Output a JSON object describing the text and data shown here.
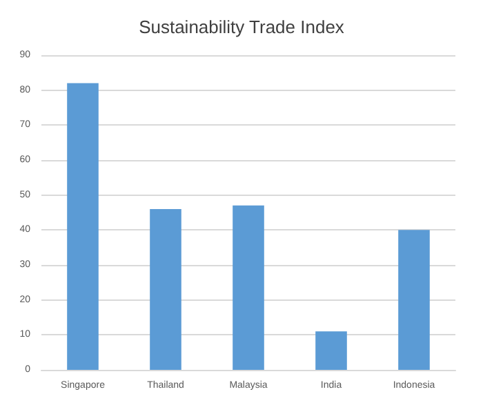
{
  "chart_data": {
    "type": "bar",
    "title": "Sustainability Trade Index",
    "categories": [
      "Singapore",
      "Thailand",
      "Malaysia",
      "India",
      "Indonesia"
    ],
    "values": [
      82,
      46,
      47,
      11,
      40
    ],
    "color": "#5b9bd5",
    "ylim": [
      0,
      90
    ],
    "yticks": [
      0,
      10,
      20,
      30,
      40,
      50,
      60,
      70,
      80,
      90
    ],
    "grid": "y"
  }
}
